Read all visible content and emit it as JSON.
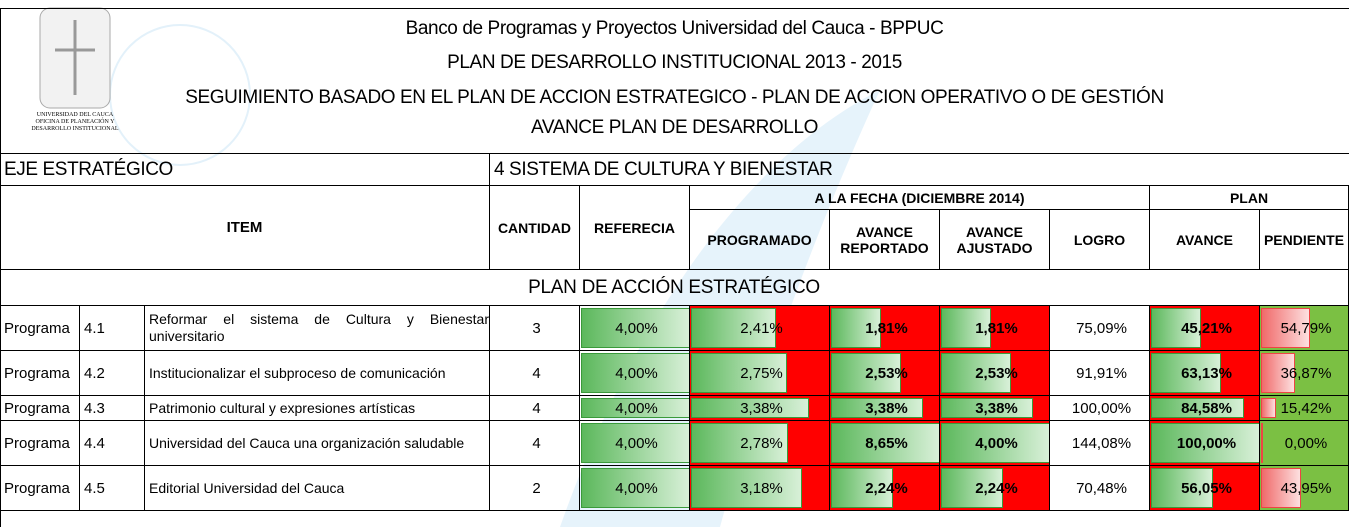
{
  "header": {
    "titles": [
      "Banco de Programas y Proyectos Universidad del Cauca - BPPUC",
      "PLAN DE DESARROLLO INSTITUCIONAL 2013 - 2015",
      "SEGUIMIENTO BASADO EN EL PLAN DE ACCION ESTRATEGICO - PLAN DE ACCION OPERATIVO O DE GESTIÓN",
      "AVANCE PLAN DE DESARROLLO"
    ],
    "logo_text": [
      "UNIVERSIDAD DEL CAUCA",
      "OFICINA DE PLANEACIÓN Y",
      "DESARROLLO INSTITUCIONAL"
    ]
  },
  "eje": {
    "label": "EJE ESTRATÉGICO",
    "value": "4 SISTEMA DE CULTURA Y BIENESTAR"
  },
  "table": {
    "group_headers": [
      "A LA FECHA (DICIEMBRE 2014)",
      "PLAN"
    ],
    "columns": [
      "ITEM",
      "CANTIDAD",
      "REFERECIA",
      "PROGRAMADO",
      "AVANCE REPORTADO",
      "AVANCE AJUSTADO",
      "LOGRO",
      "AVANCE",
      "PENDIENTE"
    ],
    "section": "PLAN DE ACCIÓN ESTRATÉGICO",
    "rows": [
      [
        "Programa",
        "4.1",
        "Reformar el sistema de Cultura y Bienestar universitario",
        "3",
        "4,00%",
        "2,41%",
        "1,81%",
        "1,81%",
        "75,09%",
        "45,21%",
        "54,79%"
      ],
      [
        "Programa",
        "4.2",
        "Institucionalizar el subproceso de comunicación",
        "4",
        "4,00%",
        "2,75%",
        "2,53%",
        "2,53%",
        "91,91%",
        "63,13%",
        "36,87%"
      ],
      [
        "Programa",
        "4.3",
        "Patrimonio cultural y expresiones artísticas",
        "4",
        "4,00%",
        "3,38%",
        "3,38%",
        "3,38%",
        "100,00%",
        "84,58%",
        "15,42%"
      ],
      [
        "Programa",
        "4.4",
        "Universidad del Cauca una organización saludable",
        "4",
        "4,00%",
        "2,78%",
        "8,65%",
        "4,00%",
        "144,08%",
        "100,00%",
        "0,00%"
      ],
      [
        "Programa",
        "4.5",
        "Editorial Universidad del Cauca",
        "2",
        "4,00%",
        "3,18%",
        "2,24%",
        "2,24%",
        "70,48%",
        "56,05%",
        "43,95%"
      ]
    ]
  }
}
